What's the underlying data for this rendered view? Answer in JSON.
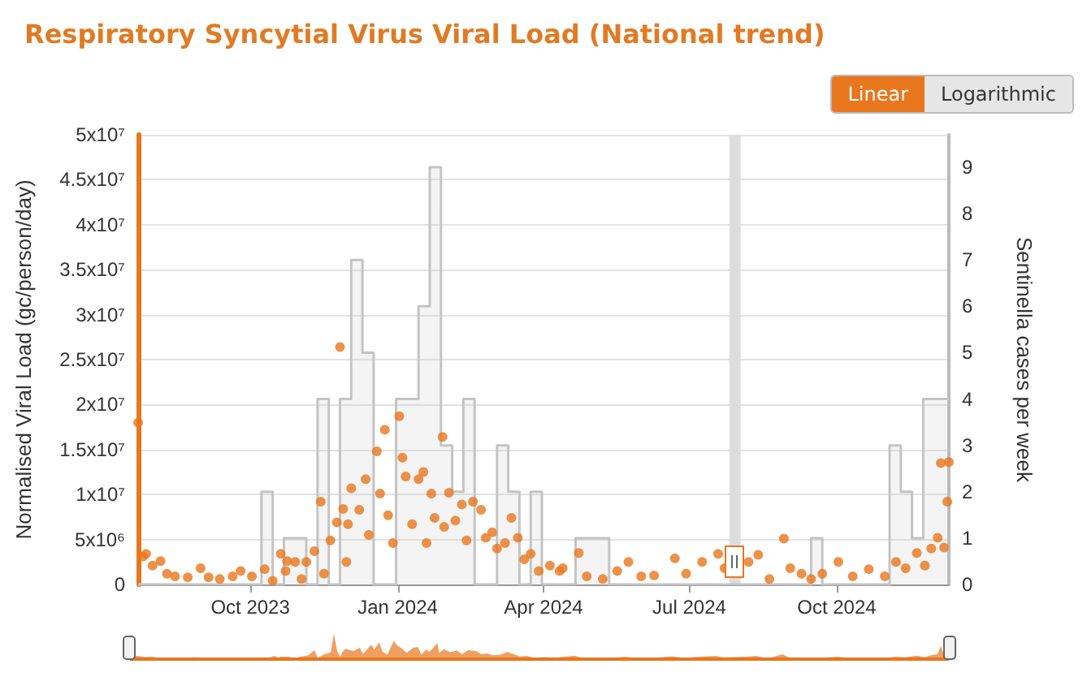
{
  "chart_data": {
    "type": "scatter",
    "title": "Respiratory Syncytial Virus Viral Load (National trend)",
    "ylabel": "Normalised Viral Load (gc/person/day)",
    "y2label": "Sentinella cases per week",
    "annotations": [
      "Linear",
      "Logarithmic"
    ],
    "xlim": [
      "2023-07-23",
      "2024-12-10"
    ],
    "xticks": [
      {
        "value": "2023-10-01",
        "label": "Oct 2023"
      },
      {
        "value": "2024-01-01",
        "label": "Jan 2024"
      },
      {
        "value": "2024-04-01",
        "label": "Apr 2024"
      },
      {
        "value": "2024-07-01",
        "label": "Jul 2024"
      },
      {
        "value": "2024-10-01",
        "label": "Oct 2024"
      }
    ],
    "ylim": [
      0,
      50000000
    ],
    "yticks": [
      0,
      {
        "value": 5000000,
        "label": "5x10⁶"
      },
      {
        "value": 10000000,
        "label": "1x10⁷"
      },
      {
        "value": 15000000,
        "label": "1.5x10⁷"
      },
      {
        "value": 20000000,
        "label": "2x10⁷"
      },
      {
        "value": 25000000,
        "label": "2.5x10⁷"
      },
      {
        "value": 30000000,
        "label": "3x10⁷"
      },
      {
        "value": 35000000,
        "label": "3.5x10⁷"
      },
      {
        "value": 40000000,
        "label": "4x10⁷"
      },
      {
        "value": 45000000,
        "label": "4.5x10⁷"
      },
      {
        "value": 50000000,
        "label": "5x10⁷"
      }
    ],
    "y2lim": [
      0,
      9.7
    ],
    "y2ticks": [
      0,
      1,
      2,
      3,
      4,
      5,
      6,
      7,
      8,
      9
    ],
    "grid": "y",
    "bands": [
      {
        "axis": "x",
        "from": "2024-07-26",
        "to": "2024-08-02",
        "label": null,
        "color": "#dddddd"
      }
    ],
    "series": [
      {
        "marker": "circle",
        "color": "#e8771e",
        "x": [
          "2023-07-23",
          "2023-07-26",
          "2023-07-28",
          "2023-08-01",
          "2023-08-06",
          "2023-08-10",
          "2023-08-15",
          "2023-08-23",
          "2023-08-31",
          "2023-09-05",
          "2023-09-12",
          "2023-09-20",
          "2023-09-25",
          "2023-10-02",
          "2023-10-10",
          "2023-10-15",
          "2023-10-20",
          "2023-10-23",
          "2023-10-24",
          "2023-10-29",
          "2023-11-02",
          "2023-11-05",
          "2023-11-10",
          "2023-11-14",
          "2023-11-16",
          "2023-11-20",
          "2023-11-24",
          "2023-11-26",
          "2023-11-28",
          "2023-11-30",
          "2023-12-01",
          "2023-12-03",
          "2023-12-08",
          "2023-12-12",
          "2023-12-14",
          "2023-12-19",
          "2023-12-21",
          "2023-12-24",
          "2023-12-26",
          "2023-12-29",
          "2024-01-02",
          "2024-01-04",
          "2024-01-06",
          "2024-01-10",
          "2024-01-14",
          "2024-01-17",
          "2024-01-19",
          "2024-01-22",
          "2024-01-24",
          "2024-01-29",
          "2024-01-30",
          "2024-02-02",
          "2024-02-06",
          "2024-02-10",
          "2024-02-13",
          "2024-02-17",
          "2024-02-22",
          "2024-02-25",
          "2024-02-29",
          "2024-03-03",
          "2024-03-08",
          "2024-03-12",
          "2024-03-16",
          "2024-03-20",
          "2024-03-24",
          "2024-03-29",
          "2024-04-05",
          "2024-04-11",
          "2024-04-13",
          "2024-04-23",
          "2024-04-28",
          "2024-05-08",
          "2024-05-17",
          "2024-05-24",
          "2024-06-01",
          "2024-06-09",
          "2024-06-22",
          "2024-06-29",
          "2024-07-09",
          "2024-07-19",
          "2024-07-23",
          "2024-08-07",
          "2024-08-13",
          "2024-08-20",
          "2024-08-29",
          "2024-09-02",
          "2024-09-09",
          "2024-09-15",
          "2024-09-22",
          "2024-10-02",
          "2024-10-11",
          "2024-10-21",
          "2024-10-31",
          "2024-11-07",
          "2024-11-13",
          "2024-11-20",
          "2024-11-25",
          "2024-11-29",
          "2024-12-03",
          "2024-12-05",
          "2024-12-07",
          "2024-12-09",
          "2024-12-10"
        ],
        "values": [
          18000000,
          3100000,
          3400000,
          2100000,
          2600000,
          1200000,
          900000,
          800000,
          1800000,
          800000,
          600000,
          900000,
          1500000,
          900000,
          1700000,
          400000,
          3400000,
          1500000,
          2600000,
          2500000,
          600000,
          2500000,
          3700000,
          9200000,
          1200000,
          4900000,
          6900000,
          26400000,
          8400000,
          2500000,
          6700000,
          10700000,
          8300000,
          11700000,
          5500000,
          14800000,
          10100000,
          17200000,
          7700000,
          4600000,
          18700000,
          14100000,
          12000000,
          6700000,
          11700000,
          12500000,
          4600000,
          10100000,
          7400000,
          16400000,
          6400000,
          10200000,
          7100000,
          8900000,
          4900000,
          9200000,
          8300000,
          5200000,
          5800000,
          4000000,
          4600000,
          7400000,
          5200000,
          2800000,
          3400000,
          1500000,
          2100000,
          1500000,
          1800000,
          3500000,
          900000,
          600000,
          1500000,
          2500000,
          900000,
          1000000,
          2900000,
          1200000,
          2500000,
          3400000,
          1800000,
          2500000,
          3300000,
          600000,
          5100000,
          1800000,
          1200000,
          600000,
          1200000,
          2500000,
          900000,
          1700000,
          900000,
          2500000,
          1800000,
          3500000,
          2100000,
          4000000,
          5200000,
          13500000,
          4100000,
          9200000,
          13600000
        ]
      },
      {
        "type": "step",
        "axis": "y2",
        "marker": "none",
        "color": "#c4c4c4",
        "x": [
          "2023-07-23",
          "2023-10-08",
          "2023-10-15",
          "2023-10-22",
          "2023-11-05",
          "2023-11-12",
          "2023-11-19",
          "2023-11-26",
          "2023-12-03",
          "2023-12-10",
          "2023-12-17",
          "2023-12-31",
          "2024-01-14",
          "2024-01-21",
          "2024-01-28",
          "2024-02-04",
          "2024-02-11",
          "2024-02-18",
          "2024-03-03",
          "2024-03-10",
          "2024-03-17",
          "2024-03-24",
          "2024-03-31",
          "2024-04-21",
          "2024-05-12",
          "2024-09-15",
          "2024-09-22",
          "2024-11-03",
          "2024-11-10",
          "2024-11-17",
          "2024-11-24",
          "2024-12-10"
        ],
        "values": [
          0,
          2,
          0,
          1,
          0,
          4,
          0,
          4,
          7,
          5,
          0,
          4,
          6,
          9,
          3,
          2,
          4,
          0,
          3,
          2,
          0,
          2,
          0,
          1,
          0,
          1,
          0,
          3,
          2,
          1,
          4,
          4
        ]
      }
    ]
  }
}
